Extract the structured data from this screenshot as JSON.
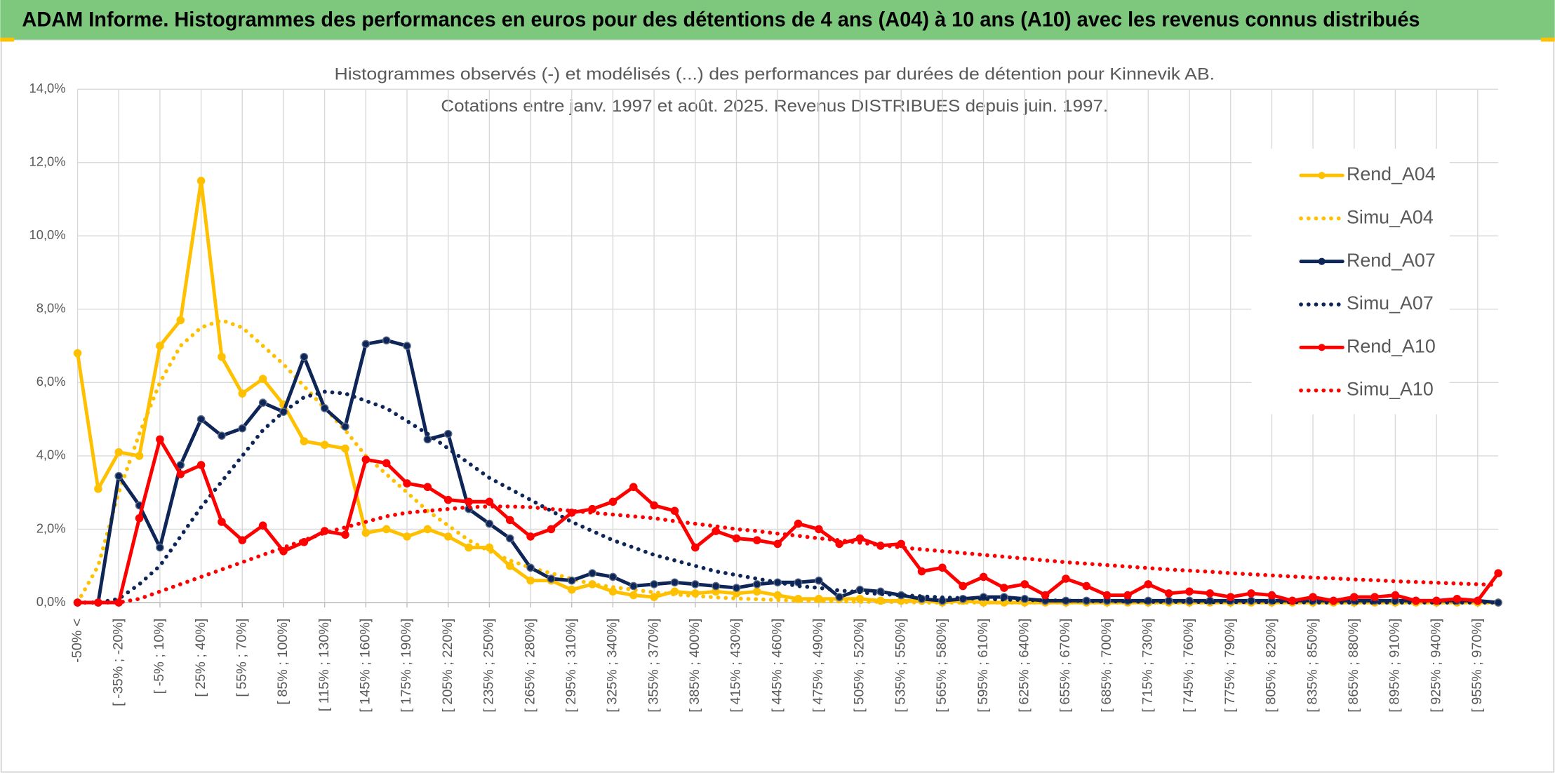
{
  "chart_data": {
    "type": "line",
    "title": "ADAM Informe. Histogrammes des performances en euros pour des détentions de 4 ans (A04) à 10 ans (A10) avec les revenus connus distribués",
    "subtitle": [
      "Histogrammes observés (-) et modélisés (...) des performances par durées de détention pour Kinnevik AB.",
      "Cotations entre janv. 1997 et août. 2025. Revenus DISTRIBUES depuis juin. 1997."
    ],
    "categories": [
      "-50% <",
      null,
      "[ -35% ; -20%]",
      null,
      "[ -5% ; 10%]",
      null,
      "[ 25% ; 40%]",
      null,
      "[ 55% ; 70%]",
      null,
      "[ 85% ; 100%]",
      null,
      "[ 115% ; 130%]",
      null,
      "[ 145% ; 160%]",
      null,
      "[ 175% ; 190%]",
      null,
      "[ 205% ; 220%]",
      null,
      "[ 235% ; 250%]",
      null,
      "[ 265% ; 280%]",
      null,
      "[ 295% ; 310%]",
      null,
      "[ 325% ; 340%]",
      null,
      "[ 355% ; 370%]",
      null,
      "[ 385% ; 400%]",
      null,
      "[ 415% ; 430%]",
      null,
      "[ 445% ; 460%]",
      null,
      "[ 475% ; 490%]",
      null,
      "[ 505% ; 520%]",
      null,
      "[ 535% ; 550%]",
      null,
      "[ 565% ; 580%]",
      null,
      "[ 595% ; 610%]",
      null,
      "[ 625% ; 640%]",
      null,
      "[ 655% ; 670%]",
      null,
      "[ 685% ; 700%]",
      null,
      "[ 715% ; 730%]",
      null,
      "[ 745% ; 760%]",
      null,
      "[ 775% ; 790%]",
      null,
      "[ 805% ; 820%]",
      null,
      "[ 835% ; 850%]",
      null,
      "[ 865% ; 880%]",
      null,
      "[ 895% ; 910%]",
      null,
      "[ 925% ; 940%]",
      null,
      "[ 955% ; 970%]",
      null
    ],
    "ylim": [
      0,
      14
    ],
    "yticks": [
      {
        "value": 0,
        "label": "0,0%"
      },
      {
        "value": 2,
        "label": "2,0%"
      },
      {
        "value": 4,
        "label": "4,0%"
      },
      {
        "value": 6,
        "label": "6,0%"
      },
      {
        "value": 8,
        "label": "8,0%"
      },
      {
        "value": 10,
        "label": "10,0%"
      },
      {
        "value": 12,
        "label": "12,0%"
      },
      {
        "value": 14,
        "label": "14,0%"
      }
    ],
    "grid": true,
    "legend": "right",
    "series": [
      {
        "name": "Rend_A04",
        "color": "#ffc000",
        "line_style": "solid",
        "markers": true,
        "values": [
          6.8,
          3.1,
          4.1,
          4.0,
          7.0,
          7.7,
          11.5,
          6.7,
          5.7,
          6.1,
          5.4,
          4.4,
          4.3,
          4.2,
          1.9,
          2.0,
          1.8,
          2.0,
          1.8,
          1.5,
          1.5,
          1.0,
          0.6,
          0.6,
          0.35,
          0.5,
          0.3,
          0.2,
          0.15,
          0.3,
          0.25,
          0.3,
          0.25,
          0.3,
          0.2,
          0.1,
          0.1,
          0.1,
          0.1,
          0.05,
          0.05,
          0.05,
          0,
          0.05,
          0,
          0,
          0,
          0,
          0,
          0,
          0,
          0,
          0,
          0,
          0,
          0,
          0,
          0,
          0,
          0,
          0,
          0,
          0,
          0,
          0,
          0,
          0,
          0,
          0,
          0
        ]
      },
      {
        "name": "Simu_A04",
        "color": "#ffc000",
        "line_style": "dotted",
        "markers": false,
        "values": [
          0,
          1.0,
          3.0,
          4.6,
          6.0,
          7.0,
          7.5,
          7.7,
          7.5,
          7.0,
          6.5,
          5.9,
          5.3,
          4.7,
          4.0,
          3.5,
          3.0,
          2.5,
          2.1,
          1.7,
          1.4,
          1.15,
          0.95,
          0.8,
          0.65,
          0.5,
          0.42,
          0.35,
          0.28,
          0.22,
          0.18,
          0.14,
          0.11,
          0.09,
          0.07,
          0.05,
          0.04,
          0.03,
          0.02,
          0.02,
          0.01,
          0,
          0,
          0,
          0,
          0,
          0,
          0,
          0,
          0,
          0,
          0,
          0,
          0,
          0,
          0,
          0,
          0,
          0,
          0,
          0,
          0,
          0,
          0,
          0,
          0,
          0,
          0,
          0,
          0
        ]
      },
      {
        "name": "Rend_A07",
        "color": "#0e2557",
        "line_style": "solid",
        "markers": true,
        "values": [
          0,
          0,
          3.45,
          2.65,
          1.5,
          3.75,
          5.0,
          4.55,
          4.75,
          5.45,
          5.2,
          6.7,
          5.3,
          4.8,
          7.05,
          7.15,
          7.0,
          4.45,
          4.6,
          2.55,
          2.15,
          1.75,
          0.95,
          0.65,
          0.6,
          0.8,
          0.7,
          0.45,
          0.5,
          0.55,
          0.5,
          0.45,
          0.4,
          0.5,
          0.55,
          0.55,
          0.6,
          0.15,
          0.35,
          0.3,
          0.2,
          0.1,
          0.05,
          0.1,
          0.15,
          0.15,
          0.1,
          0.05,
          0.05,
          0.05,
          0.05,
          0.05,
          0.05,
          0.05,
          0.05,
          0.05,
          0.05,
          0.05,
          0.05,
          0.05,
          0.05,
          0.05,
          0.05,
          0.05,
          0.05,
          0.05,
          0.05,
          0.05,
          0.05,
          0
        ]
      },
      {
        "name": "Simu_A07",
        "color": "#0e2557",
        "line_style": "dotted",
        "markers": false,
        "values": [
          0,
          0,
          0.1,
          0.5,
          1.0,
          1.8,
          2.6,
          3.3,
          4.0,
          4.7,
          5.2,
          5.6,
          5.75,
          5.7,
          5.5,
          5.3,
          4.95,
          4.6,
          4.2,
          3.8,
          3.4,
          3.1,
          2.8,
          2.5,
          2.2,
          1.95,
          1.7,
          1.5,
          1.3,
          1.15,
          1.0,
          0.85,
          0.75,
          0.65,
          0.55,
          0.45,
          0.4,
          0.33,
          0.28,
          0.23,
          0.2,
          0.17,
          0.14,
          0.12,
          0.1,
          0.08,
          0.07,
          0.06,
          0.05,
          0.04,
          0.03,
          0.03,
          0.02,
          0.02,
          0.02,
          0.01,
          0.01,
          0.01,
          0.01,
          0.01,
          0,
          0,
          0,
          0,
          0,
          0,
          0,
          0,
          0,
          0
        ]
      },
      {
        "name": "Rend_A10",
        "color": "#ff0000",
        "line_style": "solid",
        "markers": true,
        "values": [
          0,
          0,
          0,
          2.3,
          4.45,
          3.5,
          3.75,
          2.2,
          1.7,
          2.1,
          1.4,
          1.65,
          1.95,
          1.85,
          3.9,
          3.8,
          3.25,
          3.15,
          2.8,
          2.75,
          2.75,
          2.25,
          1.8,
          2.0,
          2.45,
          2.55,
          2.75,
          3.15,
          2.65,
          2.5,
          1.5,
          1.95,
          1.75,
          1.7,
          1.6,
          2.15,
          2.0,
          1.6,
          1.75,
          1.55,
          1.6,
          0.85,
          0.95,
          0.45,
          0.7,
          0.4,
          0.5,
          0.2,
          0.65,
          0.45,
          0.2,
          0.2,
          0.5,
          0.25,
          0.3,
          0.25,
          0.15,
          0.25,
          0.2,
          0.05,
          0.15,
          0.05,
          0.15,
          0.15,
          0.2,
          0.05,
          0.05,
          0.1,
          0.05,
          0.8
        ]
      },
      {
        "name": "Simu_A10",
        "color": "#ff0000",
        "line_style": "dotted",
        "markers": false,
        "values": [
          0,
          0,
          0,
          0.1,
          0.3,
          0.5,
          0.7,
          0.9,
          1.1,
          1.3,
          1.5,
          1.7,
          1.9,
          2.05,
          2.2,
          2.35,
          2.45,
          2.5,
          2.55,
          2.6,
          2.62,
          2.62,
          2.6,
          2.55,
          2.5,
          2.45,
          2.4,
          2.35,
          2.3,
          2.22,
          2.15,
          2.08,
          2.0,
          1.95,
          1.88,
          1.82,
          1.75,
          1.7,
          1.63,
          1.57,
          1.5,
          1.45,
          1.4,
          1.35,
          1.3,
          1.25,
          1.2,
          1.15,
          1.1,
          1.06,
          1.02,
          0.98,
          0.94,
          0.9,
          0.87,
          0.84,
          0.8,
          0.77,
          0.74,
          0.71,
          0.68,
          0.66,
          0.63,
          0.61,
          0.58,
          0.56,
          0.54,
          0.52,
          0.5,
          0.48
        ]
      }
    ]
  }
}
